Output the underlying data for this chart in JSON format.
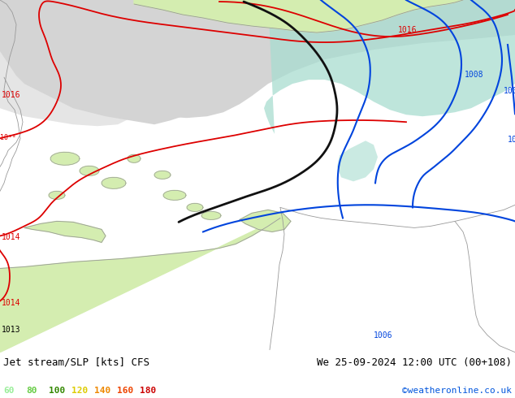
{
  "title_left": "Jet stream/SLP [kts] CFS",
  "title_right": "We 25-09-2024 12:00 UTC (00+108)",
  "copyright": "©weatheronline.co.uk",
  "legend_values": [
    "60",
    "80",
    "100",
    "120",
    "140",
    "160",
    "180"
  ],
  "legend_colors": [
    "#99ee99",
    "#66cc44",
    "#338800",
    "#ddcc00",
    "#ee8800",
    "#ee4400",
    "#cc0000"
  ],
  "bg_map": "#d4edb0",
  "sea_color": "#d4d4d4",
  "land_green": "#d4edb0",
  "teal_color": "#a8ddd0",
  "coastline_color": "#999999",
  "red_isobar": "#dd0000",
  "blue_isobar": "#0044dd",
  "black_jet": "#111111",
  "bottom_bg": "#ffffff",
  "figsize": [
    6.34,
    4.9
  ],
  "dpi": 100
}
